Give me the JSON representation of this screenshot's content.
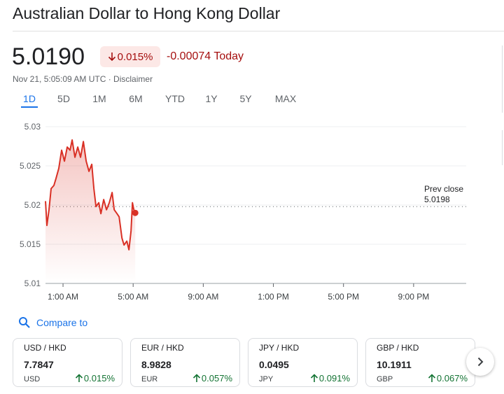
{
  "header": {
    "title": "Australian Dollar to Hong Kong Dollar",
    "price": "5.0190",
    "change_pct": "0.015%",
    "change_abs": "-0.00074 Today",
    "timestamp": "Nov 21, 5:05:09 AM UTC · Disclaimer"
  },
  "tabs": [
    "1D",
    "5D",
    "1M",
    "6M",
    "YTD",
    "1Y",
    "5Y",
    "MAX"
  ],
  "chart_data": {
    "type": "area",
    "color": "#d93025",
    "x": [
      0.0,
      0.08,
      0.2,
      0.32,
      0.48,
      0.6,
      0.76,
      0.92,
      1.08,
      1.24,
      1.4,
      1.52,
      1.68,
      1.84,
      2.0,
      2.16,
      2.32,
      2.48,
      2.64,
      2.76,
      2.88,
      3.04,
      3.16,
      3.32,
      3.48,
      3.64,
      3.8,
      3.92,
      4.08,
      4.2,
      4.36,
      4.48,
      4.64,
      4.76,
      4.88,
      4.96,
      5.04,
      5.12
    ],
    "values": [
      5.0205,
      5.0174,
      5.0194,
      5.0221,
      5.0225,
      5.0234,
      5.0247,
      5.027,
      5.0256,
      5.0274,
      5.027,
      5.0283,
      5.0261,
      5.0274,
      5.0261,
      5.0281,
      5.0256,
      5.0243,
      5.0252,
      5.0221,
      5.0198,
      5.0203,
      5.0189,
      5.0207,
      5.0194,
      5.0203,
      5.0216,
      5.0194,
      5.0189,
      5.0185,
      5.0158,
      5.0149,
      5.0154,
      5.0143,
      5.0167,
      5.0203,
      5.0194,
      5.019
    ],
    "xlim": [
      0,
      24
    ],
    "xticks": [
      {
        "value": 1,
        "label": "1:00 AM"
      },
      {
        "value": 5,
        "label": "5:00 AM"
      },
      {
        "value": 9,
        "label": "9:00 AM"
      },
      {
        "value": 13,
        "label": "1:00 PM"
      },
      {
        "value": 17,
        "label": "5:00 PM"
      },
      {
        "value": 21,
        "label": "9:00 PM"
      }
    ],
    "ylim": [
      5.01,
      5.03
    ],
    "yticks": [
      5.01,
      5.015,
      5.02,
      5.025,
      5.03
    ],
    "grid": true,
    "prev_close": {
      "label": "Prev close",
      "value": 5.0198
    }
  },
  "compare": {
    "label": "Compare to"
  },
  "cards": [
    {
      "pair": "USD / HKD",
      "price": "7.7847",
      "currency": "USD",
      "change": "0.015%"
    },
    {
      "pair": "EUR / HKD",
      "price": "8.9828",
      "currency": "EUR",
      "change": "0.057%"
    },
    {
      "pair": "JPY / HKD",
      "price": "0.0495",
      "currency": "JPY",
      "change": "0.091%"
    },
    {
      "pair": "GBP / HKD",
      "price": "10.1911",
      "currency": "GBP",
      "change": "0.067%"
    }
  ]
}
